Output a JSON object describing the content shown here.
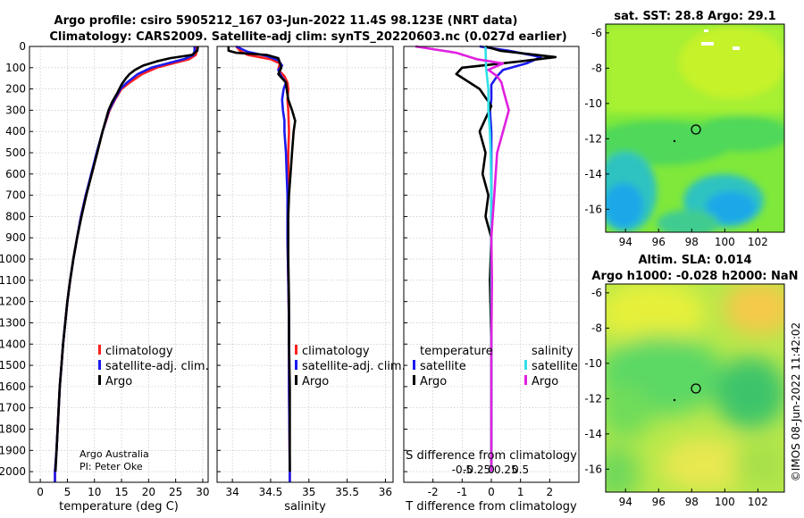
{
  "figure": {
    "title_line1": "Argo profile: csiro 5905212_167 03-Jun-2022 11.4S 98.123E (NRT data)",
    "title_line2": "Climatology: CARS2009. Satellite-adj clim: synTS_20220603.nc (0.027d earlier)",
    "credit_line1": "Argo Australia",
    "credit_line2": "PI: Peter Oke",
    "copyright": "©IMOS 08-Jun-2022 11:42:02"
  },
  "colors": {
    "climatology": "#ff2020",
    "satellite_adj": "#1a1aee",
    "argo": "#000000",
    "sat_temperature": "#1a1aee",
    "sat_salinity": "#30e0e8",
    "argo_salinity": "#e020e0"
  },
  "chart_data": [
    {
      "id": "temperature",
      "type": "line",
      "xlabel": "temperature (deg C)",
      "ylabel": "",
      "xlim": [
        -2,
        31
      ],
      "ylim": [
        2050,
        0
      ],
      "xticks": [
        0,
        5,
        10,
        15,
        20,
        25,
        30
      ],
      "yticks": [
        0,
        100,
        200,
        300,
        400,
        500,
        600,
        700,
        800,
        900,
        1000,
        1100,
        1200,
        1300,
        1400,
        1500,
        1600,
        1700,
        1800,
        1900,
        2000
      ],
      "grid": true,
      "legend": {
        "position": "lower-middle",
        "entries": [
          "climatology",
          "satellite-adj. clim.",
          "Argo"
        ]
      },
      "series": [
        {
          "name": "climatology",
          "color": "climatology",
          "points": [
            [
              28.9,
              0
            ],
            [
              28.9,
              20
            ],
            [
              28.7,
              40
            ],
            [
              27.5,
              60
            ],
            [
              24.5,
              80
            ],
            [
              21.5,
              100
            ],
            [
              18.8,
              130
            ],
            [
              16.5,
              170
            ],
            [
              15.0,
              200
            ],
            [
              13.8,
              250
            ],
            [
              12.8,
              300
            ],
            [
              11.5,
              400
            ],
            [
              10.5,
              500
            ],
            [
              9.5,
              600
            ],
            [
              8.4,
              700
            ],
            [
              7.5,
              800
            ],
            [
              6.8,
              900
            ],
            [
              6.1,
              1000
            ],
            [
              5.5,
              1100
            ],
            [
              5.0,
              1200
            ],
            [
              4.6,
              1300
            ],
            [
              4.2,
              1400
            ],
            [
              3.9,
              1500
            ],
            [
              3.6,
              1600
            ],
            [
              3.4,
              1700
            ],
            [
              3.2,
              1800
            ],
            [
              3.0,
              1900
            ],
            [
              2.7,
              2000
            ],
            [
              2.7,
              2050
            ]
          ]
        },
        {
          "name": "satellite-adj. clim.",
          "color": "satellite_adj",
          "points": [
            [
              28.5,
              0
            ],
            [
              28.5,
              20
            ],
            [
              28.3,
              40
            ],
            [
              26.5,
              60
            ],
            [
              23.5,
              80
            ],
            [
              20.5,
              100
            ],
            [
              18.0,
              130
            ],
            [
              16.0,
              170
            ],
            [
              14.8,
              200
            ],
            [
              13.7,
              250
            ],
            [
              12.7,
              300
            ],
            [
              11.5,
              400
            ],
            [
              10.4,
              500
            ],
            [
              9.4,
              600
            ],
            [
              8.4,
              700
            ],
            [
              7.5,
              800
            ],
            [
              6.8,
              900
            ],
            [
              6.1,
              1000
            ],
            [
              5.5,
              1100
            ],
            [
              5.0,
              1200
            ],
            [
              4.6,
              1300
            ],
            [
              4.2,
              1400
            ],
            [
              3.9,
              1500
            ],
            [
              3.6,
              1600
            ],
            [
              3.4,
              1700
            ],
            [
              3.2,
              1800
            ],
            [
              3.0,
              1900
            ],
            [
              2.7,
              2000
            ],
            [
              2.7,
              2050
            ]
          ]
        },
        {
          "name": "Argo",
          "color": "argo",
          "points": [
            [
              29.1,
              0
            ],
            [
              29.0,
              20
            ],
            [
              28.0,
              40
            ],
            [
              24.0,
              55
            ],
            [
              21.5,
              70
            ],
            [
              19.0,
              90
            ],
            [
              17.5,
              110
            ],
            [
              16.5,
              130
            ],
            [
              15.8,
              150
            ],
            [
              15.0,
              180
            ],
            [
              14.2,
              220
            ],
            [
              13.3,
              260
            ],
            [
              12.6,
              300
            ],
            [
              11.5,
              400
            ],
            [
              10.5,
              500
            ],
            [
              9.5,
              600
            ],
            [
              8.5,
              700
            ],
            [
              7.6,
              800
            ],
            [
              6.8,
              900
            ],
            [
              6.1,
              1000
            ],
            [
              5.5,
              1100
            ],
            [
              5.0,
              1200
            ],
            [
              4.6,
              1300
            ],
            [
              4.2,
              1400
            ],
            [
              3.9,
              1500
            ],
            [
              3.6,
              1600
            ],
            [
              3.4,
              1700
            ],
            [
              3.2,
              1800
            ],
            [
              3.0,
              1900
            ],
            [
              2.8,
              2000
            ]
          ]
        }
      ]
    },
    {
      "id": "salinity",
      "type": "line",
      "xlabel": "salinity",
      "xlim": [
        33.8,
        36.1
      ],
      "ylim": [
        2050,
        0
      ],
      "xticks": [
        34,
        34.5,
        35,
        35.5,
        36
      ],
      "grid": true,
      "legend": {
        "position": "lower-middle",
        "entries": [
          "climatology",
          "satellite-adj. clim.",
          "Argo"
        ]
      },
      "series": [
        {
          "name": "climatology",
          "color": "climatology",
          "points": [
            [
              34.05,
              0
            ],
            [
              34.1,
              20
            ],
            [
              34.2,
              40
            ],
            [
              34.5,
              60
            ],
            [
              34.62,
              80
            ],
            [
              34.6,
              110
            ],
            [
              34.68,
              140
            ],
            [
              34.72,
              170
            ],
            [
              34.73,
              200
            ],
            [
              34.72,
              250
            ],
            [
              34.73,
              300
            ],
            [
              34.74,
              400
            ],
            [
              34.73,
              500
            ],
            [
              34.73,
              700
            ],
            [
              34.72,
              900
            ],
            [
              34.73,
              1100
            ],
            [
              34.74,
              1300
            ],
            [
              34.74,
              1600
            ],
            [
              34.75,
              2000
            ],
            [
              34.75,
              2050
            ]
          ]
        },
        {
          "name": "satellite-adj. clim.",
          "color": "satellite_adj",
          "points": [
            [
              34.05,
              0
            ],
            [
              34.2,
              25
            ],
            [
              34.45,
              45
            ],
            [
              34.6,
              65
            ],
            [
              34.65,
              90
            ],
            [
              34.6,
              110
            ],
            [
              34.64,
              140
            ],
            [
              34.7,
              170
            ],
            [
              34.67,
              200
            ],
            [
              34.65,
              250
            ],
            [
              34.66,
              300
            ],
            [
              34.68,
              350
            ],
            [
              34.68,
              400
            ],
            [
              34.7,
              500
            ],
            [
              34.71,
              600
            ],
            [
              34.72,
              700
            ],
            [
              34.72,
              900
            ],
            [
              34.73,
              1100
            ],
            [
              34.74,
              1300
            ],
            [
              34.74,
              1600
            ],
            [
              34.75,
              2000
            ],
            [
              34.75,
              2050
            ]
          ]
        },
        {
          "name": "Argo",
          "color": "argo",
          "points": [
            [
              33.95,
              0
            ],
            [
              33.95,
              20
            ],
            [
              34.05,
              30
            ],
            [
              34.45,
              40
            ],
            [
              34.6,
              55
            ],
            [
              34.62,
              75
            ],
            [
              34.64,
              100
            ],
            [
              34.6,
              130
            ],
            [
              34.7,
              170
            ],
            [
              34.71,
              200
            ],
            [
              34.73,
              250
            ],
            [
              34.78,
              300
            ],
            [
              34.82,
              350
            ],
            [
              34.8,
              400
            ],
            [
              34.78,
              500
            ],
            [
              34.76,
              600
            ],
            [
              34.74,
              700
            ],
            [
              34.73,
              800
            ],
            [
              34.73,
              900
            ],
            [
              34.73,
              1000
            ],
            [
              34.74,
              1200
            ],
            [
              34.74,
              1400
            ],
            [
              34.75,
              1600
            ],
            [
              34.75,
              1800
            ],
            [
              34.75,
              2000
            ]
          ]
        }
      ]
    },
    {
      "id": "differences",
      "type": "line",
      "xlabel": "T difference from climatology",
      "x2label": "S difference from climatology",
      "xlim": [
        -3.0,
        3.0
      ],
      "ylim": [
        2050,
        0
      ],
      "xticks": [
        -2,
        -1,
        0,
        1,
        2
      ],
      "xtick_labels": [
        "-2",
        "-1",
        "0",
        "1",
        "2"
      ],
      "x2ticks": [
        -1.0,
        -0.5,
        0,
        0.5,
        1.0
      ],
      "x2tick_labels": [
        "-0.5",
        "-0.25",
        "0",
        "0.25",
        "0.5"
      ],
      "grid": true,
      "legend": {
        "position": "middle",
        "temperature_header": "temperature",
        "salinity_header": "salinity",
        "entries_temperature": [
          "satellite",
          "Argo"
        ],
        "entries_salinity": [
          "satellite",
          "Argo"
        ]
      },
      "series": [
        {
          "name": "temperature satellite",
          "color": "sat_temperature",
          "points": [
            [
              -0.4,
              0
            ],
            [
              0.6,
              20
            ],
            [
              1.7,
              50
            ],
            [
              1.2,
              80
            ],
            [
              0.4,
              110
            ],
            [
              0.2,
              140
            ],
            [
              0.0,
              180
            ],
            [
              0.0,
              250
            ],
            [
              -0.05,
              300
            ],
            [
              0.0,
              400
            ],
            [
              0.0,
              600
            ],
            [
              0.0,
              900
            ],
            [
              0.0,
              1200
            ],
            [
              0.0,
              1600
            ],
            [
              0.0,
              2000
            ]
          ]
        },
        {
          "name": "temperature Argo",
          "color": "argo",
          "points": [
            [
              -0.2,
              0
            ],
            [
              0.3,
              20
            ],
            [
              2.2,
              50
            ],
            [
              1.0,
              70
            ],
            [
              -1.0,
              100
            ],
            [
              -1.2,
              130
            ],
            [
              -0.4,
              200
            ],
            [
              0.0,
              280
            ],
            [
              -0.4,
              400
            ],
            [
              -0.2,
              500
            ],
            [
              -0.3,
              600
            ],
            [
              -0.1,
              700
            ],
            [
              -0.2,
              800
            ],
            [
              0.0,
              900
            ],
            [
              -0.05,
              1100
            ],
            [
              0.0,
              1400
            ],
            [
              0.0,
              1700
            ],
            [
              0.0,
              2000
            ]
          ]
        },
        {
          "name": "salinity satellite",
          "color": "sat_salinity",
          "points": [
            [
              -0.2,
              0
            ],
            [
              -0.18,
              100
            ],
            [
              -0.1,
              200
            ],
            [
              -0.1,
              300
            ],
            [
              -0.05,
              400
            ],
            [
              -0.02,
              500
            ],
            [
              0.0,
              700
            ],
            [
              0.0,
              900
            ],
            [
              0.0,
              1200
            ],
            [
              0.0,
              1500
            ],
            [
              0.0,
              2000
            ]
          ]
        },
        {
          "name": "salinity Argo",
          "color": "argo_salinity",
          "points": [
            [
              -2.6,
              0
            ],
            [
              -1.2,
              30
            ],
            [
              -0.5,
              60
            ],
            [
              0.4,
              80
            ],
            [
              -0.1,
              110
            ],
            [
              0.2,
              140
            ],
            [
              0.35,
              170
            ],
            [
              0.4,
              200
            ],
            [
              0.5,
              250
            ],
            [
              0.6,
              300
            ],
            [
              0.4,
              400
            ],
            [
              0.2,
              500
            ],
            [
              0.15,
              600
            ],
            [
              0.1,
              700
            ],
            [
              0.05,
              800
            ],
            [
              0.0,
              900
            ],
            [
              0.02,
              1100
            ],
            [
              0.0,
              1400
            ],
            [
              0.0,
              1700
            ],
            [
              0.0,
              2000
            ]
          ]
        }
      ]
    },
    {
      "id": "sst-map",
      "type": "heatmap",
      "title": "sat. SST: 28.8 Argo: 29.1",
      "xlim": [
        92.8,
        103.6
      ],
      "ylim": [
        -17.3,
        -5.5
      ],
      "xticks": [
        94,
        96,
        98,
        100,
        102
      ],
      "yticks": [
        -6,
        -8,
        -10,
        -12,
        -14,
        -16
      ],
      "marker": {
        "lon": 98.123,
        "lat": -11.4
      }
    },
    {
      "id": "sla-map",
      "type": "heatmap",
      "title_line1": "Altim. SLA: 0.014",
      "title_line2": "Argo h1000: -0.028 h2000: NaN",
      "xlim": [
        92.8,
        103.6
      ],
      "ylim": [
        -17.3,
        -5.5
      ],
      "xticks": [
        94,
        96,
        98,
        100,
        102
      ],
      "yticks": [
        -6,
        -8,
        -10,
        -12,
        -14,
        -16
      ],
      "marker": {
        "lon": 98.123,
        "lat": -11.4
      }
    }
  ]
}
